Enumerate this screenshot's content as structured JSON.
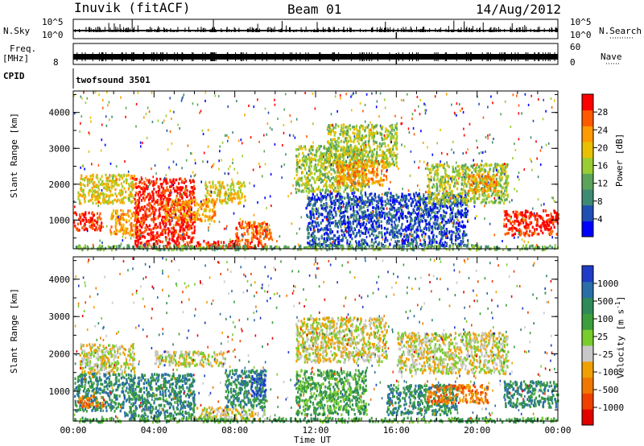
{
  "header": {
    "station": "Inuvik (fitACF)",
    "beam": "Beam 01",
    "date": "14/Aug/2012"
  },
  "strip_labels": {
    "nsky": "N.Sky",
    "nsearch": "N.Search",
    "freq_line1": "Freq.",
    "freq_line2": "[MHz]",
    "nave": "Nave",
    "cpid": "CPID",
    "cpid_value": "twofsound 3501"
  },
  "strip_ticks": {
    "n_left_top": "10^5",
    "n_left_bottom": "10^0",
    "n_right_top": "10^5",
    "n_right_bottom": "10^0",
    "freq_left": "8",
    "nave_top": "60",
    "nave_bottom": "0"
  },
  "chart_data": [
    {
      "type": "heatmap",
      "quantity": "Power",
      "ylabel": "Slant Range [km]",
      "xlabel": "",
      "ylim": [
        200,
        4600
      ],
      "yticks": [
        1000,
        2000,
        3000,
        4000
      ],
      "colorbar": {
        "label": "Power [dB]",
        "ticks": [
          "4",
          "8",
          "12",
          "16",
          "20",
          "24",
          "28"
        ],
        "colors": [
          "#0000ff",
          "#1f4fb4",
          "#3f8a72",
          "#5aa55a",
          "#9acd32",
          "#e8c000",
          "#ff9a00",
          "#ff5a00",
          "#ff0000"
        ]
      },
      "clusters": [
        {
          "t0": 0.0,
          "t1": 1.4,
          "r0": 750,
          "r1": 1250,
          "level": 8
        },
        {
          "t0": 0.2,
          "t1": 3.0,
          "r0": 1500,
          "r1": 2300,
          "level": 5
        },
        {
          "t0": 1.8,
          "t1": 3.2,
          "r0": 600,
          "r1": 1300,
          "level": 6
        },
        {
          "t0": 3.0,
          "t1": 6.0,
          "r0": 250,
          "r1": 2200,
          "level": 8
        },
        {
          "t0": 4.5,
          "t1": 7.0,
          "r0": 1000,
          "r1": 1600,
          "level": 6
        },
        {
          "t0": 6.0,
          "t1": 9.5,
          "r0": 250,
          "r1": 450,
          "level": 8
        },
        {
          "t0": 6.5,
          "t1": 8.5,
          "r0": 1500,
          "r1": 2100,
          "level": 5
        },
        {
          "t0": 8.0,
          "t1": 9.8,
          "r0": 450,
          "r1": 1000,
          "level": 7
        },
        {
          "t0": 11.0,
          "t1": 14.5,
          "r0": 1800,
          "r1": 3100,
          "level": 4
        },
        {
          "t0": 12.5,
          "t1": 16.0,
          "r0": 2500,
          "r1": 3700,
          "level": 4
        },
        {
          "t0": 13.0,
          "t1": 15.5,
          "r0": 2000,
          "r1": 2700,
          "level": 6
        },
        {
          "t0": 11.5,
          "t1": 19.5,
          "r0": 300,
          "r1": 1800,
          "level": 1
        },
        {
          "t0": 17.5,
          "t1": 21.5,
          "r0": 1500,
          "r1": 2600,
          "level": 4
        },
        {
          "t0": 19.5,
          "t1": 21.0,
          "r0": 1800,
          "r1": 2300,
          "level": 6
        },
        {
          "t0": 21.3,
          "t1": 24.0,
          "r0": 600,
          "r1": 1300,
          "level": 8
        },
        {
          "t0": 0.0,
          "t1": 24.0,
          "r0": 200,
          "r1": 330,
          "level": 3
        }
      ]
    },
    {
      "type": "heatmap",
      "quantity": "Velocity",
      "ylabel": "Slant Range [km]",
      "xlabel": "Time UT",
      "ylim": [
        200,
        4600
      ],
      "yticks": [
        1000,
        2000,
        3000,
        4000
      ],
      "xticks": [
        "00:00",
        "04:00",
        "08:00",
        "12:00",
        "16:00",
        "20:00",
        "00:00"
      ],
      "colorbar": {
        "label": "Velocity [m s^-1]",
        "ticks": [
          "1000",
          "500",
          "100",
          "25",
          "-25",
          "-100",
          "-500",
          "-1000"
        ],
        "colors": [
          "#1e3cc8",
          "#2a6ea8",
          "#2e8a58",
          "#3c9e3c",
          "#78cc2c",
          "#c8c8c8",
          "#f0a000",
          "#f07800",
          "#f04000",
          "#e00000"
        ]
      },
      "clusters": [
        {
          "t0": 0.0,
          "t1": 2.5,
          "r0": 500,
          "r1": 1500,
          "level": 2
        },
        {
          "t0": 0.3,
          "t1": 3.0,
          "r0": 1500,
          "r1": 2300,
          "level": 5
        },
        {
          "t0": 2.5,
          "t1": 6.0,
          "r0": 300,
          "r1": 1500,
          "level": 2
        },
        {
          "t0": 4.0,
          "t1": 7.5,
          "r0": 1700,
          "r1": 2100,
          "level": 5
        },
        {
          "t0": 6.0,
          "t1": 9.5,
          "r0": 250,
          "r1": 600,
          "level": 5
        },
        {
          "t0": 7.5,
          "t1": 9.5,
          "r0": 600,
          "r1": 1600,
          "level": 2
        },
        {
          "t0": 8.8,
          "t1": 9.5,
          "r0": 900,
          "r1": 1500,
          "level": 0
        },
        {
          "t0": 0.2,
          "t1": 1.5,
          "r0": 600,
          "r1": 900,
          "level": 7
        },
        {
          "t0": 11.0,
          "t1": 15.5,
          "r0": 1800,
          "r1": 3000,
          "level": 5
        },
        {
          "t0": 11.0,
          "t1": 14.5,
          "r0": 400,
          "r1": 1600,
          "level": 3
        },
        {
          "t0": 15.5,
          "t1": 19.0,
          "r0": 400,
          "r1": 1200,
          "level": 2
        },
        {
          "t0": 17.5,
          "t1": 20.5,
          "r0": 700,
          "r1": 1200,
          "level": 7
        },
        {
          "t0": 16.0,
          "t1": 21.5,
          "r0": 1500,
          "r1": 2600,
          "level": 5
        },
        {
          "t0": 21.3,
          "t1": 24.0,
          "r0": 600,
          "r1": 1300,
          "level": 2
        },
        {
          "t0": 0.0,
          "t1": 24.0,
          "r0": 200,
          "r1": 320,
          "level": 3
        }
      ]
    }
  ]
}
